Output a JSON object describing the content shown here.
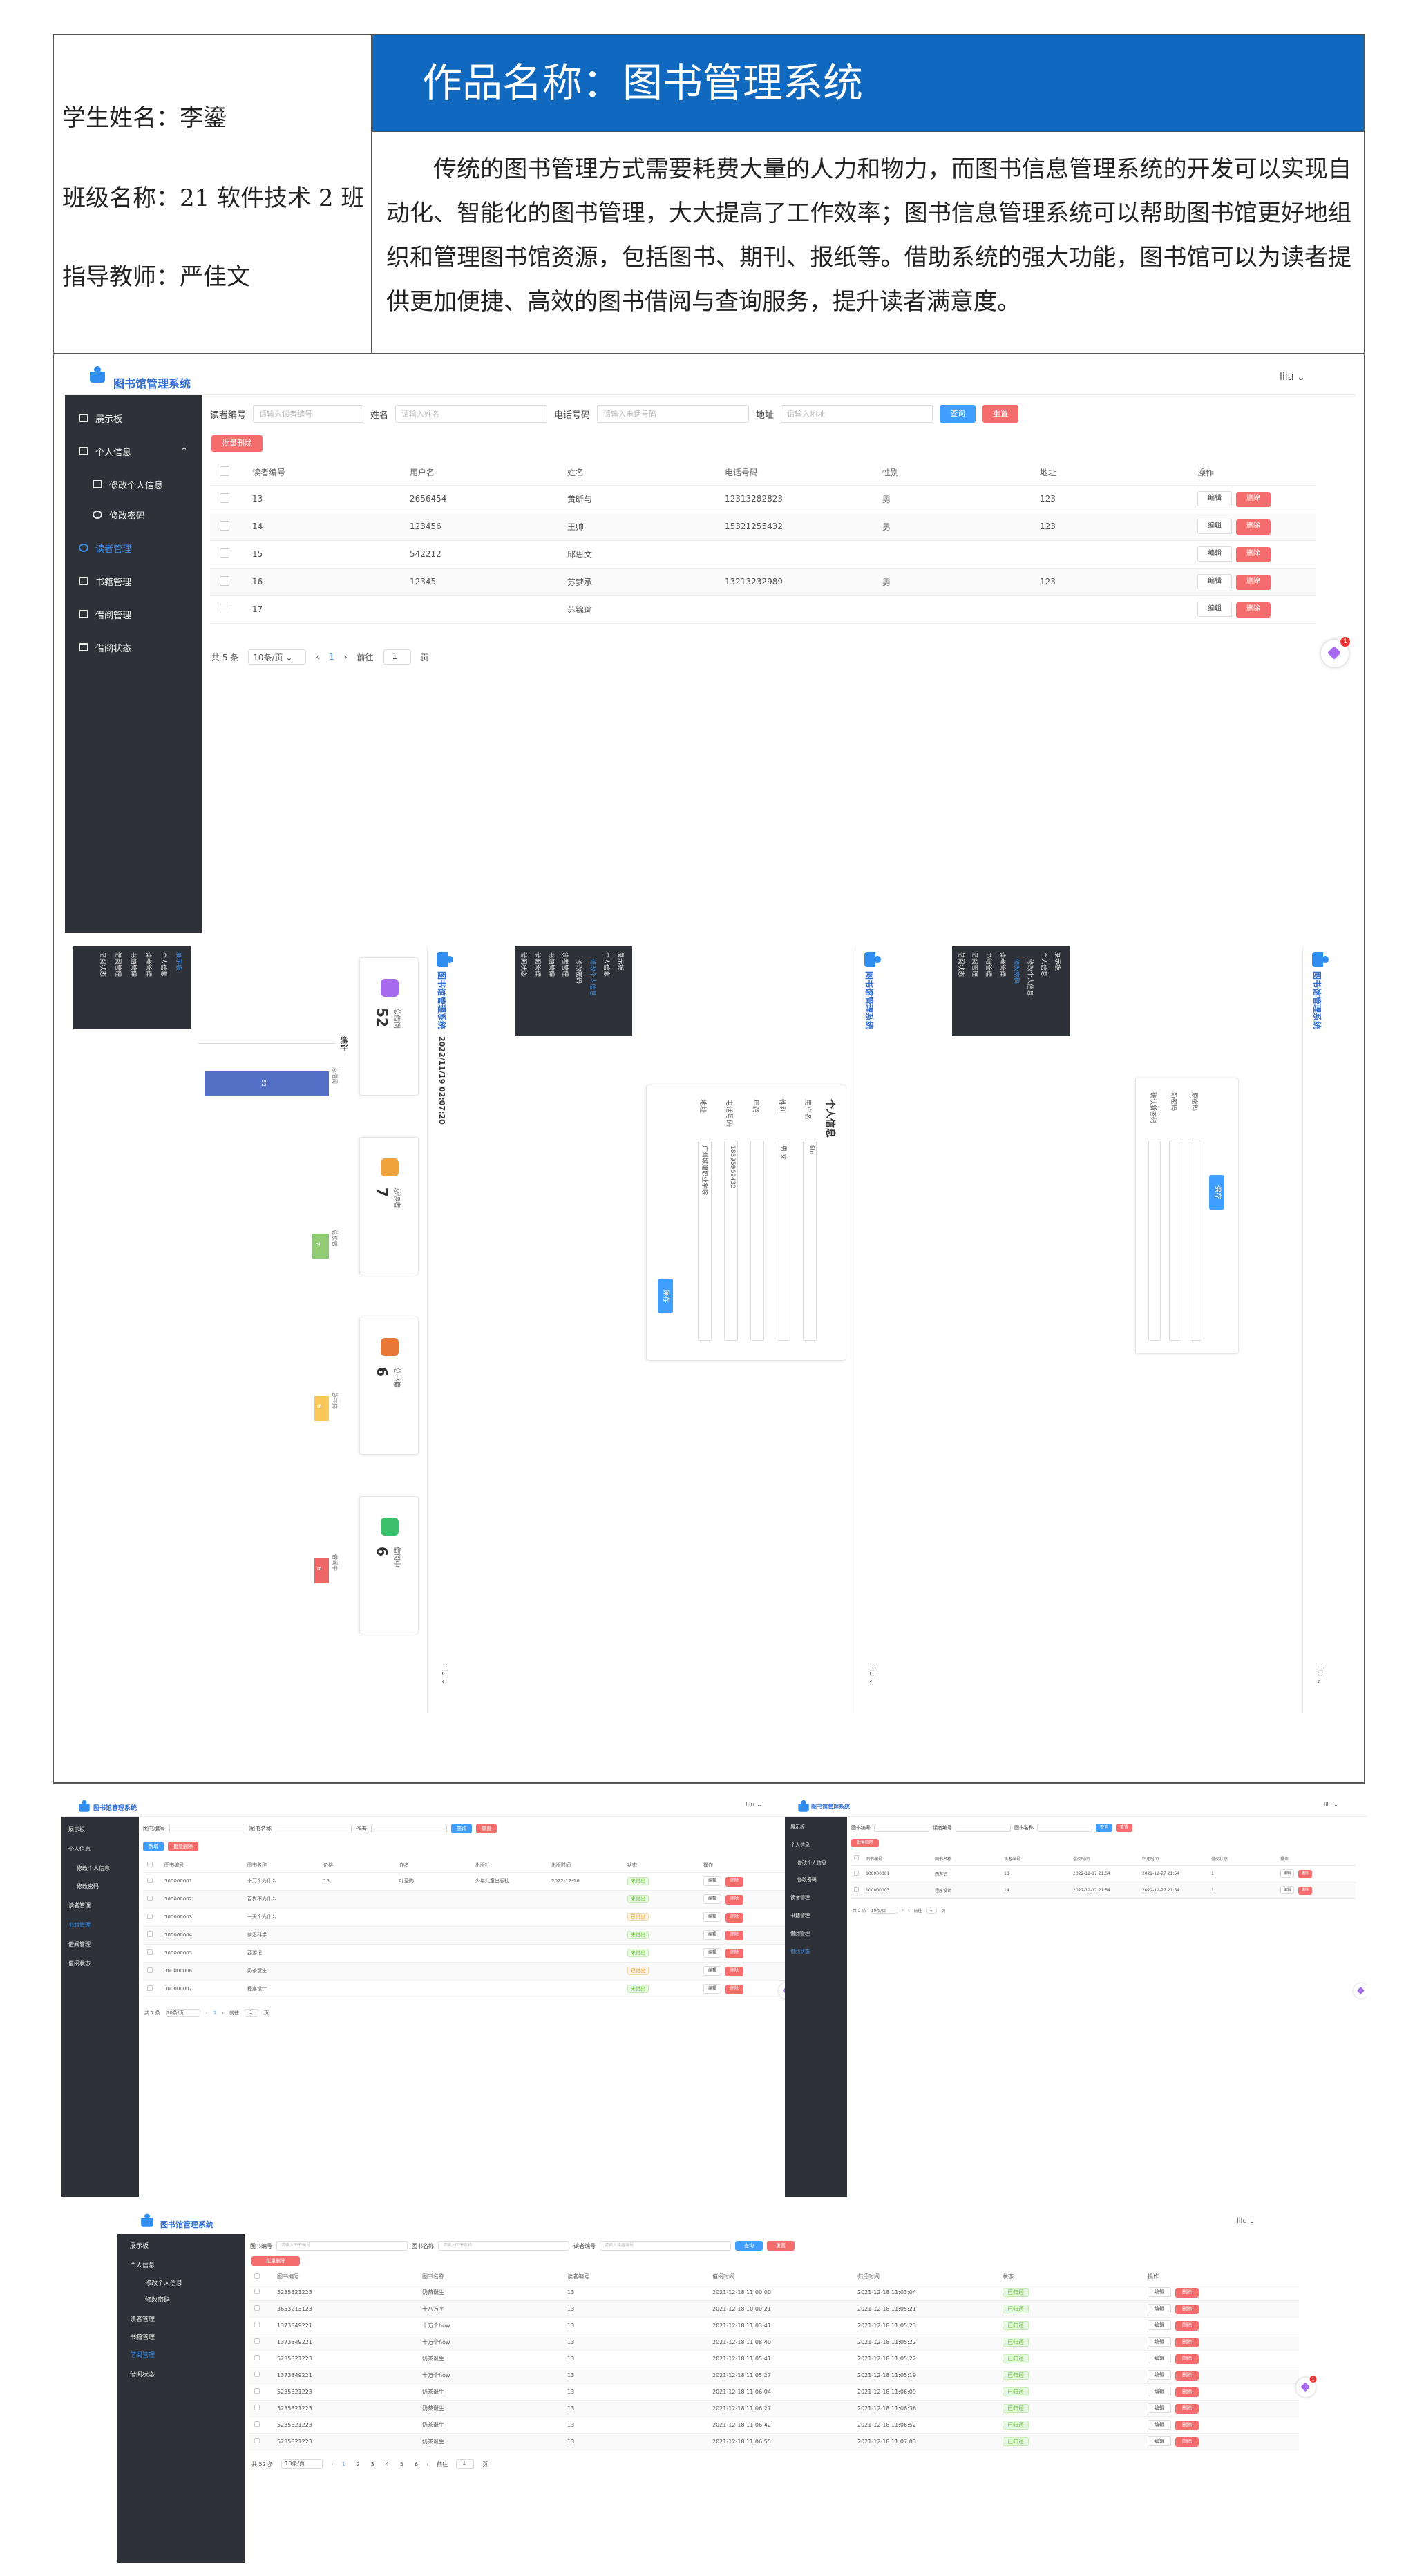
{
  "info": {
    "student": "学生姓名：李鎏",
    "class": "班级名称：21 软件技术 2 班",
    "teacher": "指导教师：严佳文",
    "title": "作品名称：图书管理系统",
    "description": "传统的图书管理方式需要耗费大量的人力和物力，而图书信息管理系统的开发可以实现自动化、智能化的图书管理，大大提高了工作效率；图书信息管理系统可以帮助图书馆更好地组织和管理图书馆资源，包括图书、期刊、报纸等。借助系统的强大功能，图书馆可以为读者提供更加便捷、高效的图书借阅与查询服务，提升读者满意度。"
  },
  "app": {
    "brand": "图书馆管理系统",
    "user": "lilu",
    "nav": {
      "home": "展示板",
      "personal": "个人信息",
      "edit_info": "修改个人信息",
      "edit_pwd": "修改密码",
      "reader": "读者管理",
      "book": "书籍管理",
      "borrow": "借阅管理",
      "status": "借阅状态"
    }
  },
  "shot1": {
    "search": {
      "reader_no": "读者编号",
      "reader_no_ph": "请输入读者编号",
      "name": "姓名",
      "name_ph": "请输入姓名",
      "phone": "电话号码",
      "phone_ph": "请输入电话号码",
      "address": "地址",
      "address_ph": "请输入地址",
      "query": "查询",
      "reset": "重置"
    },
    "batch_delete": "批量删除",
    "headers": [
      "读者编号",
      "用户名",
      "姓名",
      "电话号码",
      "性别",
      "地址",
      "操作"
    ],
    "rows": [
      [
        "13",
        "2656454",
        "黄昕与",
        "12313282823",
        "男",
        "123"
      ],
      [
        "14",
        "123456",
        "王帅",
        "15321255432",
        "男",
        "123"
      ],
      [
        "15",
        "542212",
        "邱思文",
        "",
        "",
        ""
      ],
      [
        "16",
        "12345",
        "苏梦承",
        "13213232989",
        "男",
        "123"
      ],
      [
        "17",
        "",
        "苏锦瑜",
        "",
        "",
        ""
      ]
    ],
    "edit": "编辑",
    "delete": "删除",
    "pager": {
      "total": "共 5 条",
      "size": "10条/页",
      "page": "1",
      "goto": "前往",
      "goto_val": "1",
      "unit": "页"
    }
  },
  "dashboard": {
    "time": "2022/11/19 02:07:20",
    "cards": [
      {
        "label": "总借阅",
        "value": "52",
        "color": "#a86bf0"
      },
      {
        "label": "总读者",
        "value": "7",
        "color": "#f0a23c"
      },
      {
        "label": "总书籍",
        "value": "6",
        "color": "#e87838"
      },
      {
        "label": "借阅中",
        "value": "6",
        "color": "#3cbf6a"
      }
    ],
    "chart_title": "统计",
    "bar_labels": [
      "总借阅",
      "总读者",
      "总书籍",
      "借阅中"
    ],
    "bar_values": [
      "52",
      "7",
      "6",
      "6"
    ],
    "bar_colors": [
      "#5470c6",
      "#91cc75",
      "#fac858",
      "#ee6666"
    ]
  },
  "personal_form": {
    "title": "个人信息",
    "fields": [
      "用户名",
      "性别",
      "年龄",
      "电话号码",
      "地址"
    ],
    "values": [
      "lilu",
      "男 女",
      "",
      "18395969432",
      "广州城建职业学院"
    ],
    "save": "保存"
  },
  "password_form": {
    "fields": [
      "原密码",
      "新密码",
      "确认新密码"
    ],
    "save": "保存"
  },
  "book_shot": {
    "search": {
      "no": "图书编号",
      "name": "图书名称",
      "author": "作者",
      "query": "查询",
      "reset": "重置"
    },
    "add": "新增",
    "batch_delete": "批量删除",
    "headers": [
      "图书编号",
      "图书名称",
      "价格",
      "作者",
      "出版社",
      "出版时间",
      "状态",
      "操作"
    ],
    "rows": [
      [
        "100000001",
        "十万个为什么",
        "15",
        "叶圣陶",
        "少年儿童出版社",
        "2022-12-16",
        "未借出"
      ],
      [
        "100000002",
        "百岁不为什么",
        "",
        "",
        "",
        "",
        "未借出"
      ],
      [
        "100000003",
        "一天个为什么",
        "",
        "",
        "",
        "",
        "已借出"
      ],
      [
        "100000004",
        "前沿科学",
        "",
        "",
        "",
        "",
        "未借出"
      ],
      [
        "100000005",
        "西游记",
        "",
        "",
        "",
        "",
        "未借出"
      ],
      [
        "100000006",
        "奶茶诞生",
        "",
        "",
        "",
        "",
        "已借出"
      ],
      [
        "100000007",
        "程序设计",
        "",
        "",
        "",
        "",
        "未借出"
      ]
    ],
    "edit": "编辑",
    "delete": "删除",
    "pager": {
      "total": "共 7 条",
      "size": "10条/页",
      "page": "1",
      "goto": "前往",
      "goto_val": "1",
      "unit": "页"
    }
  },
  "borrow_shot": {
    "search": {
      "no": "图书编号",
      "reader": "读者编号",
      "name": "图书名称",
      "query": "查询",
      "reset": "重置"
    },
    "batch_delete": "批量删除",
    "headers": [
      "图书编号",
      "图书名称",
      "读者编号",
      "借阅时间",
      "归还时间",
      "借阅状态",
      "操作"
    ],
    "rows": [
      [
        "100000001",
        "西游记",
        "13",
        "2022-12-17 21:54",
        "2022-12-27 21:54",
        "1"
      ],
      [
        "100000003",
        "程序设计",
        "14",
        "2022-12-17 21:54",
        "2022-12-27 21:54",
        "1"
      ]
    ],
    "edit": "编辑",
    "delete": "删除",
    "pager": {
      "total": "共 2 条",
      "size": "10条/页",
      "goto": "前往",
      "goto_val": "1",
      "unit": "页"
    }
  },
  "status_shot": {
    "search": {
      "no": "图书编号",
      "no_ph": "请输入图书编号",
      "name": "图书名称",
      "name_ph": "请输入图书名称",
      "reader": "读者编号",
      "reader_ph": "请输入读者编号",
      "query": "查询",
      "reset": "重置"
    },
    "batch_delete": "批量删除",
    "headers": [
      "图书编号",
      "图书名称",
      "读者编号",
      "借阅时间",
      "归还时间",
      "状态",
      "操作"
    ],
    "rows": [
      [
        "5235321223",
        "奶茶诞生",
        "13",
        "2021-12-18 11:00:00",
        "2021-12-18 11:03:04",
        "已归还"
      ],
      [
        "3653213123",
        "十八万字",
        "13",
        "2021-12-18 10:00:21",
        "2021-12-18 11:05:21",
        "已归还"
      ],
      [
        "1373349221",
        "十万个how",
        "13",
        "2021-12-18 11:03:41",
        "2021-12-18 11:05:23",
        "已归还"
      ],
      [
        "1373349221",
        "十万个how",
        "13",
        "2021-12-18 11:08:40",
        "2021-12-18 11:05:22",
        "已归还"
      ],
      [
        "5235321223",
        "奶茶诞生",
        "13",
        "2021-12-18 11:05:41",
        "2021-12-18 11:05:22",
        "已归还"
      ],
      [
        "1373349221",
        "十万个how",
        "13",
        "2021-12-18 11:05:27",
        "2021-12-18 11:05:19",
        "已归还"
      ],
      [
        "5235321223",
        "奶茶诞生",
        "13",
        "2021-12-18 11:06:04",
        "2021-12-18 11:06:09",
        "已归还"
      ],
      [
        "5235321223",
        "奶茶诞生",
        "13",
        "2021-12-18 11:06:27",
        "2021-12-18 11:06:36",
        "已归还"
      ],
      [
        "5235321223",
        "奶茶诞生",
        "13",
        "2021-12-18 11:06:42",
        "2021-12-18 11:06:52",
        "已归还"
      ],
      [
        "5235321223",
        "奶茶诞生",
        "13",
        "2021-12-18 11:06:55",
        "2021-12-18 11:07:03",
        "已归还"
      ]
    ],
    "edit": "编辑",
    "delete": "删除",
    "pager": {
      "total": "共 52 条",
      "size": "10条/页",
      "pages": [
        "1",
        "2",
        "3",
        "4",
        "5",
        "6"
      ],
      "goto": "前往",
      "goto_val": "1",
      "unit": "页"
    }
  }
}
